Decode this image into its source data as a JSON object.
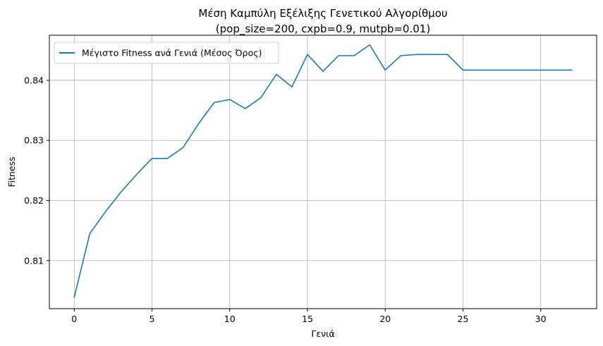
{
  "chart_data": {
    "type": "line",
    "title_line1": "Μέση Καμπύλη Εξέλιξης Γενετικού Αλγορίθμου",
    "title_line2": "(pop_size=200, cxpb=0.9, mutpb=0.01)",
    "xlabel": "Γενιά",
    "ylabel": "Fitness",
    "xlim": [
      -1.6,
      33.6
    ],
    "ylim": [
      0.802,
      0.8475
    ],
    "x_ticks": [
      0,
      5,
      10,
      15,
      20,
      25,
      30
    ],
    "y_ticks": [
      0.81,
      0.82,
      0.83,
      0.84
    ],
    "grid": true,
    "legend_position": "top-left",
    "series": [
      {
        "name": "Μέγιστο Fitness ανά Γενιά (Μέσος Όρος)",
        "color": "#1f77b4",
        "x": [
          0,
          1,
          2,
          3,
          4,
          5,
          6,
          7,
          8,
          9,
          10,
          11,
          12,
          13,
          14,
          15,
          16,
          17,
          18,
          19,
          20,
          21,
          22,
          23,
          24,
          25,
          26,
          27,
          28,
          29,
          30,
          31,
          32
        ],
        "values": [
          0.8039,
          0.8145,
          0.8181,
          0.8214,
          0.8243,
          0.827,
          0.827,
          0.8288,
          0.8328,
          0.8363,
          0.8368,
          0.8353,
          0.8371,
          0.841,
          0.8389,
          0.8443,
          0.8415,
          0.8441,
          0.8441,
          0.8459,
          0.8417,
          0.8441,
          0.8443,
          0.8443,
          0.8443,
          0.8417,
          0.8417,
          0.8417,
          0.8417,
          0.8417,
          0.8417,
          0.8417,
          0.8417
        ]
      }
    ]
  }
}
